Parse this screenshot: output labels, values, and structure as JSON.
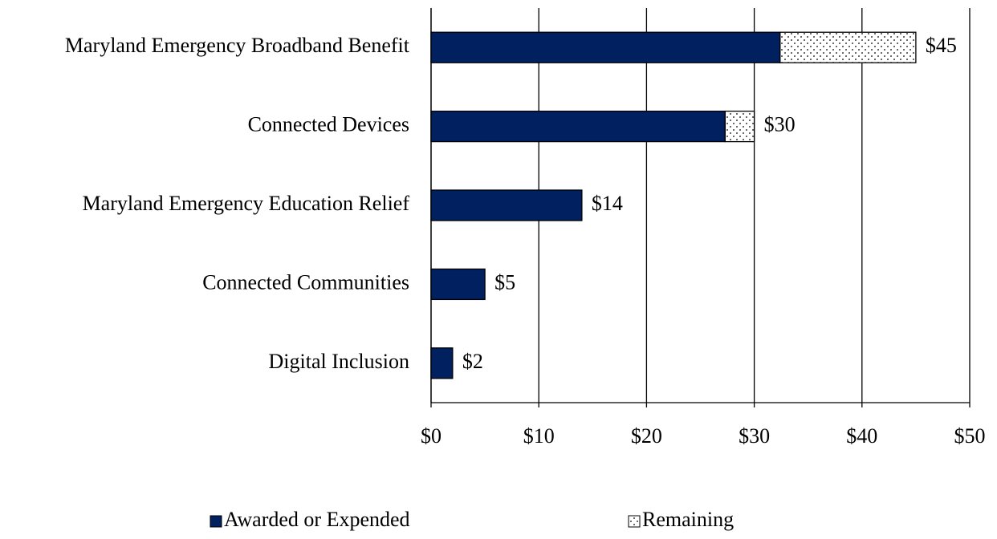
{
  "chart_data": {
    "type": "stacked_barh",
    "categories": [
      "Maryland Emergency Broadband Benefit",
      "Connected Devices",
      "Maryland Emergency Education Relief",
      "Connected Communities",
      "Digital Inclusion"
    ],
    "series": [
      {
        "name": "Awarded or Expended",
        "color": "#002060",
        "values": [
          32.4,
          27.3,
          14,
          5,
          2
        ]
      },
      {
        "name": "Remaining",
        "color": "dotted",
        "values": [
          12.6,
          2.7,
          0,
          0,
          0
        ]
      }
    ],
    "total_labels": [
      "$45",
      "$30",
      "$14",
      "$5",
      "$2"
    ],
    "xlim": [
      0,
      50
    ],
    "xticks": [
      {
        "value": 0,
        "label": "$0"
      },
      {
        "value": 10,
        "label": "$10"
      },
      {
        "value": 20,
        "label": "$20"
      },
      {
        "value": 30,
        "label": "$30"
      },
      {
        "value": 40,
        "label": "$40"
      },
      {
        "value": 50,
        "label": "$50"
      }
    ],
    "grid": true,
    "legend": "bottom"
  }
}
